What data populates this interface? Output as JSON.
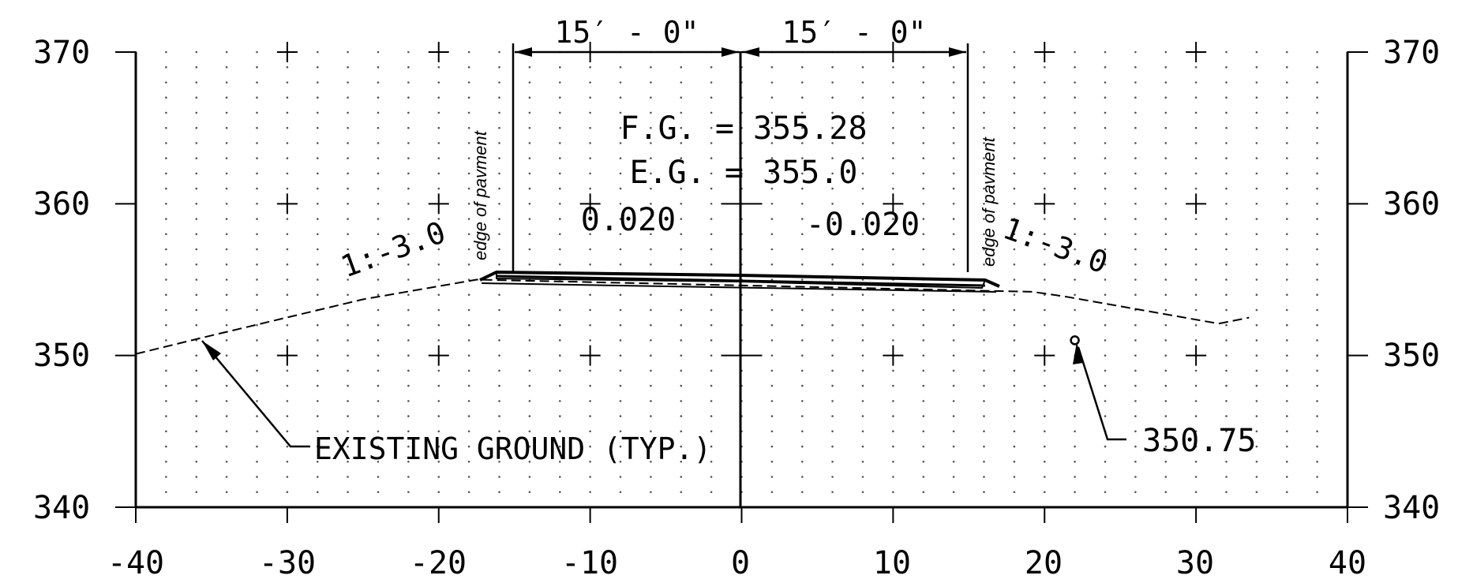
{
  "chart_data": {
    "type": "cross-section",
    "x_ticks": [
      "-40",
      "-30",
      "-20",
      "-10",
      "0",
      "10",
      "20",
      "30",
      "40"
    ],
    "y_ticks": [
      "370",
      "360",
      "350",
      "340"
    ],
    "xlim": [
      -40,
      40
    ],
    "ylim": [
      340,
      370
    ],
    "grid": "dotted",
    "dimensions": [
      "15′ - 0\"",
      "15′ - 0\""
    ],
    "finished_grade_label": "F.G. = 355.28",
    "existing_grade_label": "E.G. = 355.0",
    "left_cross_slope": "0.020",
    "right_cross_slope": "-0.020",
    "left_side_slope": "1:-3.0",
    "right_side_slope": "1:-3.0",
    "edge_of_pavement_left": "edge of pavment",
    "edge_of_pavement_right": "edge of pavment",
    "existing_ground_note": "EXISTING GROUND (TYP.)",
    "point_label": "350.75",
    "existing_ground_points": [
      {
        "x": -40,
        "y": 350.1
      },
      {
        "x": -35.5,
        "y": 351.2
      },
      {
        "x": -25,
        "y": 353.7
      },
      {
        "x": -17.5,
        "y": 355.0
      },
      {
        "x": 19.2,
        "y": 354.2
      },
      {
        "x": 21.3,
        "y": 353.9
      },
      {
        "x": 31.5,
        "y": 352.1
      },
      {
        "x": 33.5,
        "y": 352.5
      }
    ],
    "point_marker": {
      "x": 22.0,
      "y": 351.0
    }
  }
}
